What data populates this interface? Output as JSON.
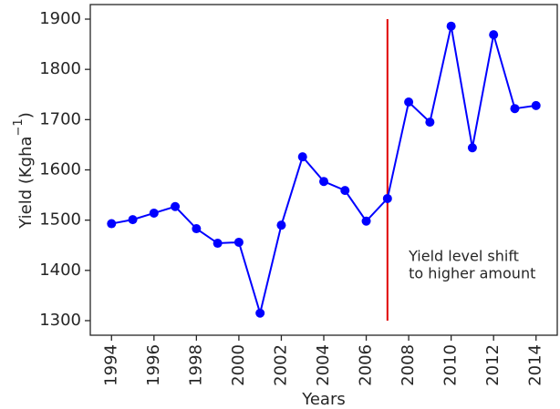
{
  "chart_data": {
    "type": "line",
    "xlabel": "Years",
    "ylabel": {
      "text": "Yield (Kgha",
      "sup": "−1",
      "end": ")"
    },
    "x": [
      1994,
      1995,
      1996,
      1997,
      1998,
      1999,
      2000,
      2001,
      2002,
      2003,
      2004,
      2005,
      2006,
      2007,
      2008,
      2009,
      2010,
      2011,
      2012,
      2013,
      2014
    ],
    "series": [
      {
        "color": "#0000ff",
        "values": [
          1493,
          1501,
          1514,
          1527,
          1483,
          1454,
          1456,
          1315,
          1490,
          1626,
          1577,
          1559,
          1498,
          1543,
          1735,
          1695,
          1886,
          1644,
          1869,
          1722,
          1728
        ]
      }
    ],
    "xlim": [
      1993,
      2015
    ],
    "ylim": [
      1271,
      1929
    ],
    "xticks": [
      1994,
      1996,
      1998,
      2000,
      2002,
      2004,
      2006,
      2008,
      2010,
      2012,
      2014
    ],
    "yticks": [
      1300,
      1400,
      1500,
      1600,
      1700,
      1800,
      1900
    ],
    "vline": {
      "x": 2007,
      "ymin": 1300,
      "ymax": 1900,
      "color": "#e00000"
    },
    "annotation": {
      "x": 2008,
      "y": 1410,
      "lines": [
        "Yield level shift",
        "to higher amount"
      ]
    }
  }
}
